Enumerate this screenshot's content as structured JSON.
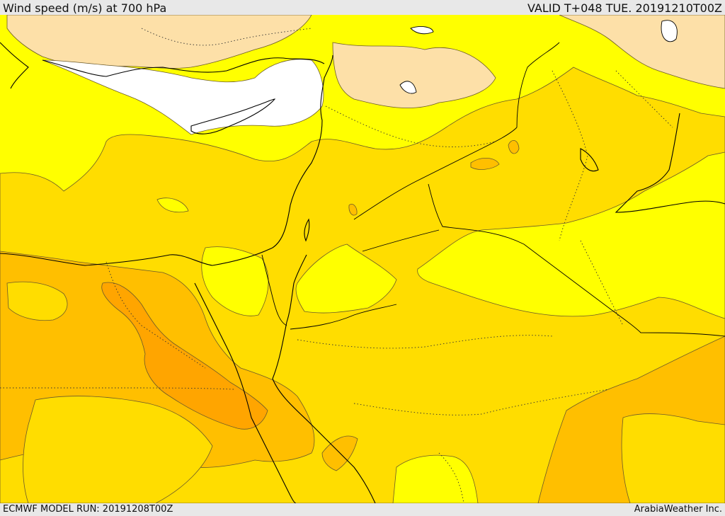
{
  "header": {
    "title": "Wind speed (m/s) at 700 hPa",
    "valid": "VALID T+048 TUE. 20191210T00Z"
  },
  "footer": {
    "model_run": "ECMWF MODEL RUN: 20191208T00Z",
    "credit": "ArabiaWeather Inc."
  },
  "colors": {
    "calm_white": "#ffffff",
    "light_tan": "#fde0a8",
    "yellow": "#ffff00",
    "gold": "#ffdd00",
    "amber": "#ffbf00",
    "orange": "#ffa500",
    "border_line": "#000000",
    "contour_line": "#6b5a2a"
  }
}
